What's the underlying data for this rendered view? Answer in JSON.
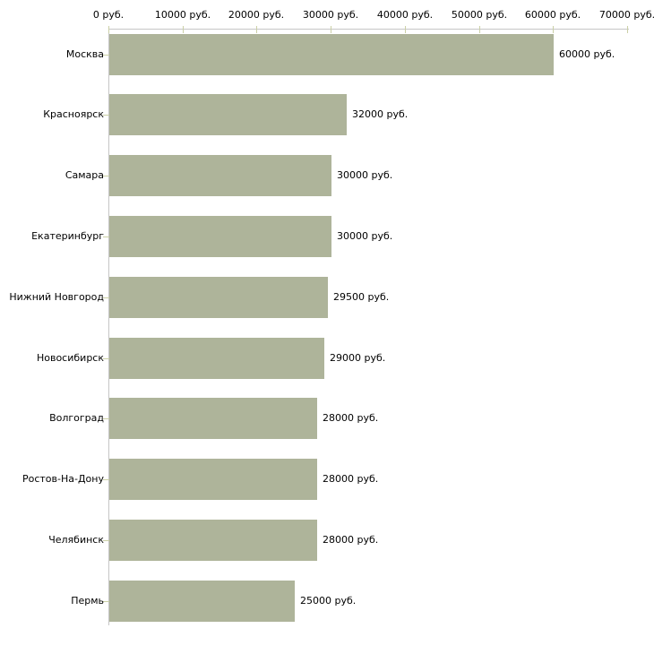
{
  "chart_data": {
    "type": "bar",
    "orientation": "horizontal",
    "title": "",
    "categories": [
      "Москва",
      "Красноярск",
      "Самара",
      "Екатеринбург",
      "Нижний Новгород",
      "Новосибирск",
      "Волгоград",
      "Ростов-На-Дону",
      "Челябинск",
      "Пермь"
    ],
    "values": [
      60000,
      32000,
      30000,
      30000,
      29500,
      29000,
      28000,
      28000,
      28000,
      25000
    ],
    "bar_value_labels": [
      "60000 руб.",
      "32000 руб.",
      "30000 руб.",
      "30000 руб.",
      "29500 руб.",
      "29000 руб.",
      "28000 руб.",
      "28000 руб.",
      "28000 руб.",
      "25000 руб."
    ],
    "x_axis": {
      "position": "top",
      "min": 0,
      "max": 70000,
      "tick_values": [
        0,
        10000,
        20000,
        30000,
        40000,
        50000,
        60000,
        70000
      ],
      "tick_labels": [
        "0 руб.",
        "10000 руб.",
        "20000 руб.",
        "30000 руб.",
        "40000 руб.",
        "50000 руб.",
        "60000 руб.",
        "70000 руб."
      ]
    },
    "xlim": [
      0,
      70000
    ],
    "grid": false,
    "legend": null,
    "colors": {
      "bar": "#aeb49a",
      "axis_line": "#c6c6c6",
      "tick_mark": "#cbd0a6",
      "label_text": "#000000",
      "background": "#ffffff"
    }
  }
}
